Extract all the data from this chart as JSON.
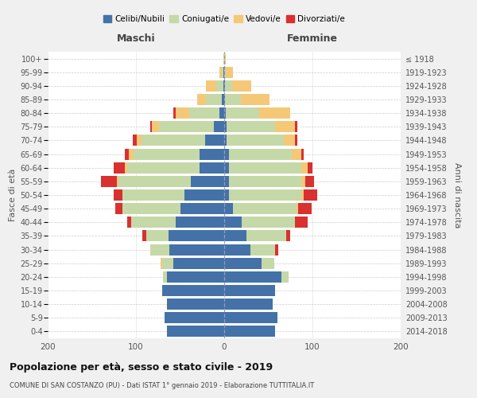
{
  "age_groups": [
    "0-4",
    "5-9",
    "10-14",
    "15-19",
    "20-24",
    "25-29",
    "30-34",
    "35-39",
    "40-44",
    "45-49",
    "50-54",
    "55-59",
    "60-64",
    "65-69",
    "70-74",
    "75-79",
    "80-84",
    "85-89",
    "90-94",
    "95-99",
    "100+"
  ],
  "birth_years": [
    "2014-2018",
    "2009-2013",
    "2004-2008",
    "1999-2003",
    "1994-1998",
    "1989-1993",
    "1984-1988",
    "1979-1983",
    "1974-1978",
    "1969-1973",
    "1964-1968",
    "1959-1963",
    "1954-1958",
    "1949-1953",
    "1944-1948",
    "1939-1943",
    "1934-1938",
    "1929-1933",
    "1924-1928",
    "1919-1923",
    "≤ 1918"
  ],
  "colors": {
    "celibi": "#4472a8",
    "coniugati": "#c5d9a8",
    "vedovi": "#f5c878",
    "divorziati": "#d93030"
  },
  "maschi": {
    "celibi": [
      65,
      68,
      65,
      70,
      65,
      58,
      62,
      63,
      55,
      50,
      45,
      38,
      28,
      28,
      22,
      12,
      5,
      3,
      1,
      1,
      0
    ],
    "coniugati": [
      0,
      0,
      0,
      0,
      4,
      12,
      22,
      25,
      50,
      65,
      70,
      82,
      82,
      75,
      72,
      62,
      35,
      18,
      8,
      2,
      1
    ],
    "vedovi": [
      0,
      0,
      0,
      0,
      0,
      2,
      0,
      0,
      0,
      0,
      0,
      2,
      3,
      5,
      5,
      8,
      15,
      10,
      12,
      2,
      0
    ],
    "divorziati": [
      0,
      0,
      0,
      0,
      0,
      0,
      0,
      5,
      5,
      8,
      10,
      18,
      12,
      5,
      5,
      2,
      3,
      0,
      0,
      0,
      0
    ]
  },
  "femmine": {
    "celibi": [
      58,
      60,
      55,
      58,
      65,
      42,
      30,
      25,
      20,
      10,
      5,
      5,
      5,
      5,
      3,
      3,
      2,
      1,
      1,
      0,
      0
    ],
    "coniugati": [
      0,
      0,
      0,
      0,
      8,
      15,
      28,
      45,
      60,
      72,
      82,
      82,
      82,
      72,
      65,
      55,
      38,
      18,
      8,
      2,
      0
    ],
    "vedovi": [
      0,
      0,
      0,
      0,
      0,
      0,
      0,
      0,
      0,
      2,
      3,
      5,
      8,
      10,
      12,
      22,
      35,
      32,
      22,
      8,
      2
    ],
    "divorziati": [
      0,
      0,
      0,
      0,
      0,
      0,
      3,
      5,
      15,
      15,
      15,
      10,
      5,
      3,
      3,
      3,
      0,
      0,
      0,
      0,
      0
    ]
  },
  "title": "Popolazione per età, sesso e stato civile - 2019",
  "subtitle": "COMUNE DI SAN COSTANZO (PU) - Dati ISTAT 1° gennaio 2019 - Elaborazione TUTTITALIA.IT",
  "xlabel_left": "Maschi",
  "xlabel_right": "Femmine",
  "ylabel_left": "Fasce di età",
  "ylabel_right": "Anni di nascita",
  "xlim": 200,
  "legend_labels": [
    "Celibi/Nubili",
    "Coniugati/e",
    "Vedovi/e",
    "Divorziati/e"
  ],
  "bg_color": "#f0f0f0",
  "plot_bg_color": "#ffffff"
}
